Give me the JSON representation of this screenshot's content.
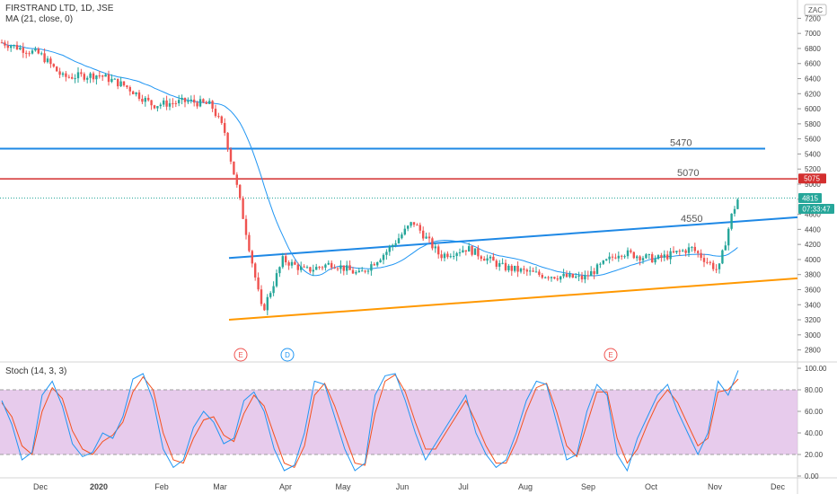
{
  "header": {
    "symbol_line": "FIRSTRAND LTD, 1D, JSE",
    "ma_line": "MA (21, close, 0)",
    "currency": "ZAC"
  },
  "stoch_panel": {
    "label": "Stoch (14, 3, 3)"
  },
  "colors": {
    "up": "#26a69a",
    "down": "#ef5350",
    "ma": "#2196f3",
    "h_line_5470": "#1e88e5",
    "h_line_5070": "#d32f2f",
    "upper_channel": "#1e88e5",
    "lower_channel": "#ff9800",
    "stoch_k": "#2196f3",
    "stoch_d": "#f4511e",
    "stoch_band": "#e1bee7"
  },
  "chart_data": [
    {
      "type": "candlestick",
      "ylim": [
        2700,
        7300
      ],
      "yticks": [
        "7200",
        "7000",
        "6800",
        "6600",
        "6400",
        "6200",
        "6000",
        "5800",
        "5600",
        "5400",
        "5200",
        "5000",
        "4800",
        "4600",
        "4400",
        "4200",
        "4000",
        "3800",
        "3600",
        "3400",
        "3200",
        "3000",
        "2800"
      ],
      "xticks": [
        "Dec",
        "2020",
        "Feb",
        "Mar",
        "Apr",
        "May",
        "Jun",
        "Jul",
        "Aug",
        "Sep",
        "Oct",
        "Nov",
        "Dec"
      ],
      "price_labels": {
        "level": "5075",
        "last": "4815",
        "countdown": "07:33:47"
      },
      "annotations": [
        {
          "text": "5470",
          "value": 5470
        },
        {
          "text": "5070",
          "value": 5070
        },
        {
          "text": "4550",
          "value": 4550
        }
      ],
      "events": [
        {
          "letter": "E",
          "date": "Mar",
          "kind": "earnings"
        },
        {
          "letter": "D",
          "date": "Apr",
          "kind": "dividend"
        },
        {
          "letter": "E",
          "date": "Sep",
          "kind": "earnings"
        }
      ],
      "horizontal_lines": [
        5470,
        5070
      ],
      "trend_lines": [
        {
          "name": "upper",
          "from": [
            "Mar",
            4020
          ],
          "to": [
            "Dec",
            4560
          ]
        },
        {
          "name": "lower",
          "from": [
            "Mar",
            3200
          ],
          "to": [
            "Dec",
            3750
          ]
        }
      ],
      "close_path": [
        [
          "Nov",
          6880
        ],
        [
          "Dec",
          6720
        ],
        [
          "Dec",
          6420
        ],
        [
          "2020",
          6450
        ],
        [
          "2020",
          6300
        ],
        [
          "Feb",
          6050
        ],
        [
          "Feb",
          6100
        ],
        [
          "Mar",
          6050
        ],
        [
          "Mar",
          5700
        ],
        [
          "Mar",
          4900
        ],
        [
          "Mar",
          3300
        ],
        [
          "Apr",
          4000
        ],
        [
          "Apr",
          3850
        ],
        [
          "May",
          3950
        ],
        [
          "May",
          3800
        ],
        [
          "Jun",
          4100
        ],
        [
          "Jun",
          4500
        ],
        [
          "Jul",
          4050
        ],
        [
          "Jul",
          4150
        ],
        [
          "Aug",
          3900
        ],
        [
          "Aug",
          3800
        ],
        [
          "Sep",
          3750
        ],
        [
          "Sep",
          4100
        ],
        [
          "Oct",
          4000
        ],
        [
          "Oct",
          4150
        ],
        [
          "Nov",
          3850
        ],
        [
          "Nov",
          4600
        ],
        [
          "Nov",
          4815
        ]
      ]
    },
    {
      "type": "line",
      "title": "Stoch (14, 3, 3)",
      "ylim": [
        0,
        100
      ],
      "yticks": [
        "100.00",
        "80.00",
        "60.00",
        "40.00",
        "20.00",
        "0.00"
      ],
      "bands": [
        20,
        80
      ],
      "k_values": [
        70,
        48,
        15,
        22,
        75,
        88,
        65,
        30,
        18,
        22,
        40,
        35,
        55,
        90,
        95,
        70,
        25,
        8,
        15,
        45,
        60,
        50,
        30,
        35,
        70,
        78,
        60,
        25,
        5,
        10,
        40,
        88,
        85,
        55,
        25,
        5,
        12,
        75,
        93,
        95,
        70,
        40,
        15,
        30,
        45,
        60,
        75,
        40,
        20,
        8,
        15,
        40,
        70,
        88,
        85,
        50,
        15,
        20,
        60,
        85,
        75,
        20,
        5,
        35,
        55,
        75,
        85,
        60,
        40,
        20,
        40,
        88,
        75,
        98
      ],
      "d_values": [
        68,
        55,
        28,
        20,
        60,
        82,
        72,
        42,
        25,
        20,
        32,
        38,
        50,
        78,
        92,
        80,
        40,
        15,
        12,
        35,
        52,
        55,
        38,
        32,
        58,
        75,
        65,
        38,
        12,
        8,
        28,
        75,
        86,
        65,
        38,
        12,
        10,
        58,
        88,
        94,
        78,
        50,
        25,
        25,
        40,
        55,
        70,
        50,
        28,
        12,
        12,
        32,
        60,
        82,
        86,
        60,
        28,
        18,
        48,
        78,
        78,
        35,
        12,
        25,
        48,
        68,
        80,
        68,
        48,
        28,
        35,
        78,
        80,
        90
      ]
    }
  ]
}
